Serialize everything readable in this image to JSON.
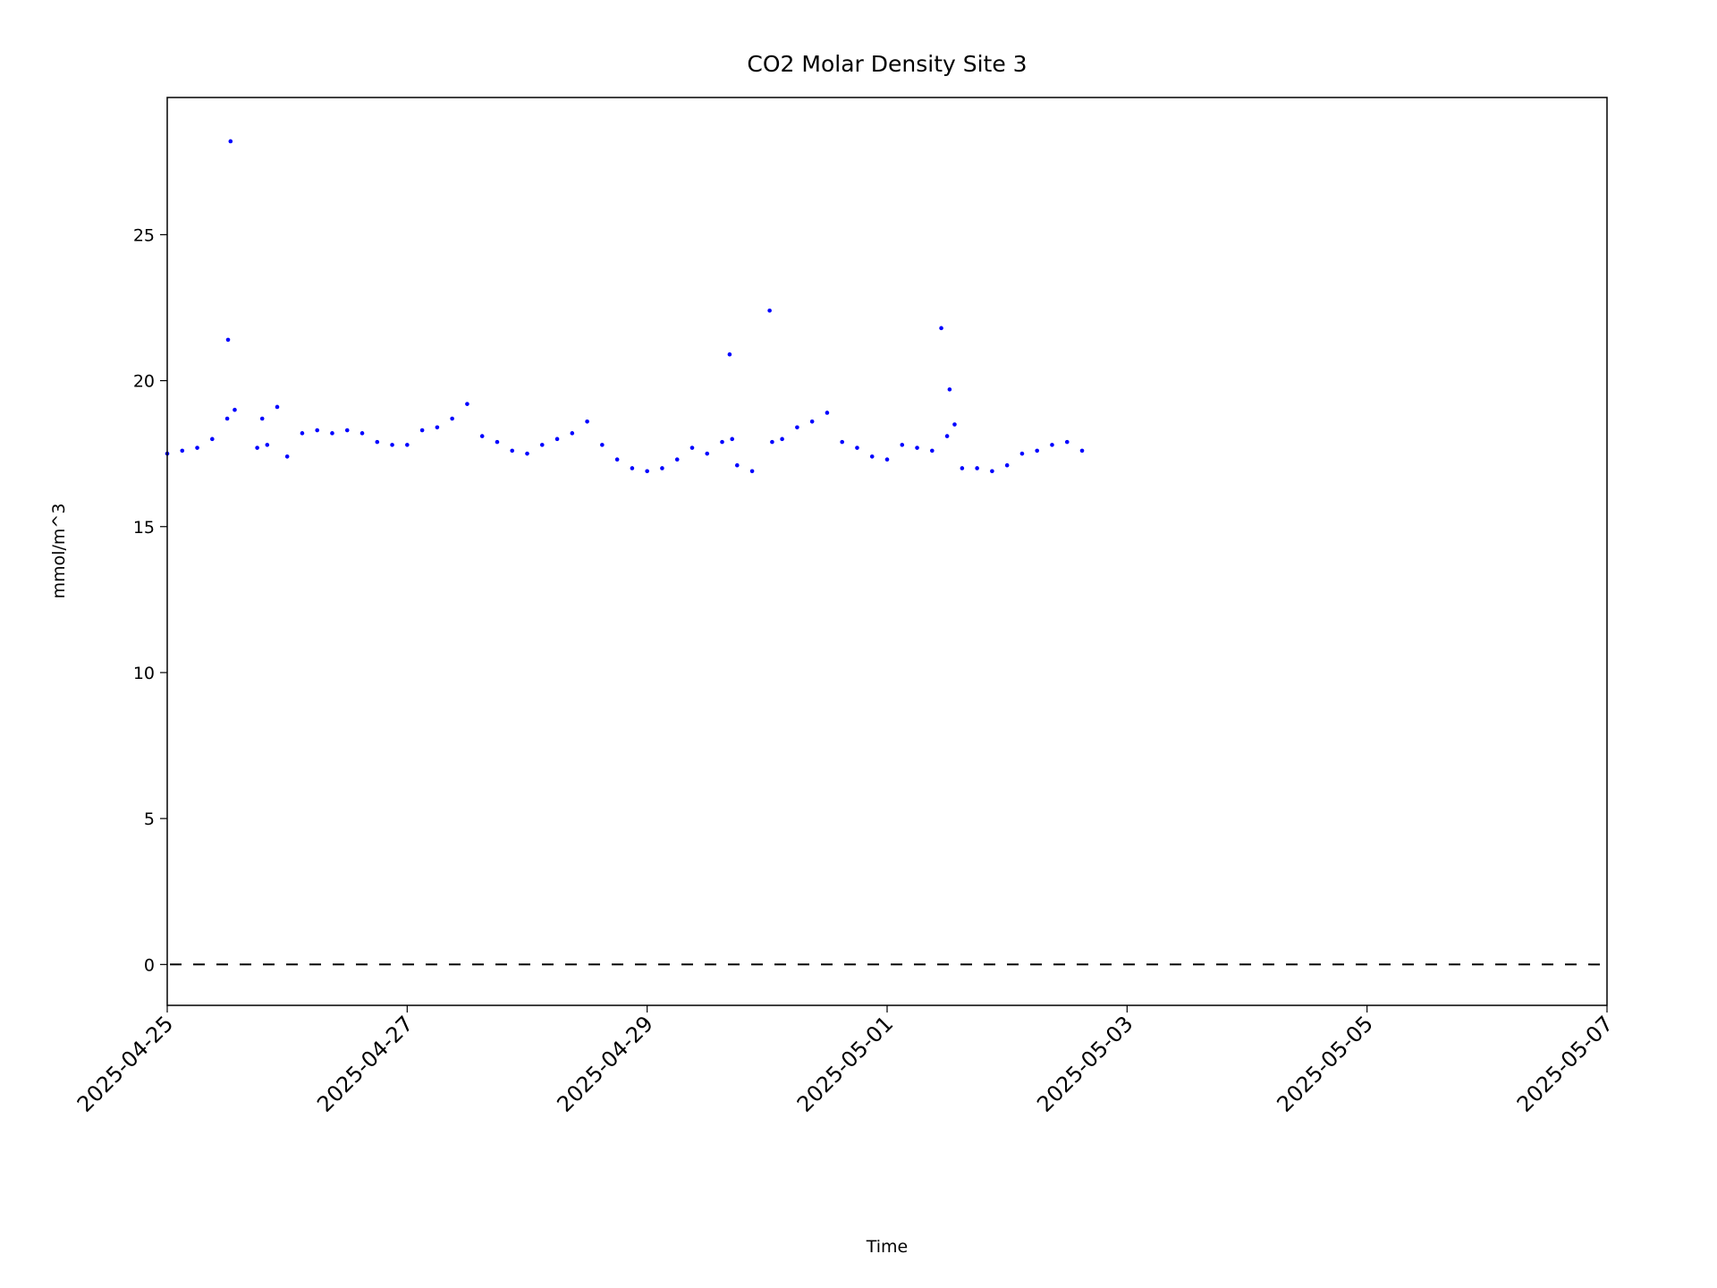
{
  "chart_data": {
    "type": "scatter",
    "title": "CO2 Molar Density Site 3",
    "x_label": "Time",
    "y_label": "mmol/m^3",
    "x": [
      "2025-04-25T00:00",
      "2025-04-25T03:00",
      "2025-04-25T06:00",
      "2025-04-25T09:00",
      "2025-04-25T12:00",
      "2025-04-25T12:10",
      "2025-04-25T12:40",
      "2025-04-25T13:30",
      "2025-04-25T18:00",
      "2025-04-25T19:00",
      "2025-04-25T20:00",
      "2025-04-25T22:00",
      "2025-04-26T00:00",
      "2025-04-26T03:00",
      "2025-04-26T06:00",
      "2025-04-26T09:00",
      "2025-04-26T12:00",
      "2025-04-26T15:00",
      "2025-04-26T18:00",
      "2025-04-26T21:00",
      "2025-04-27T00:00",
      "2025-04-27T03:00",
      "2025-04-27T06:00",
      "2025-04-27T09:00",
      "2025-04-27T12:00",
      "2025-04-27T15:00",
      "2025-04-27T18:00",
      "2025-04-27T21:00",
      "2025-04-28T00:00",
      "2025-04-28T03:00",
      "2025-04-28T06:00",
      "2025-04-28T09:00",
      "2025-04-28T12:00",
      "2025-04-28T15:00",
      "2025-04-28T18:00",
      "2025-04-28T21:00",
      "2025-04-29T00:00",
      "2025-04-29T03:00",
      "2025-04-29T06:00",
      "2025-04-29T09:00",
      "2025-04-29T12:00",
      "2025-04-29T15:00",
      "2025-04-29T16:30",
      "2025-04-29T17:00",
      "2025-04-29T18:00",
      "2025-04-29T21:00",
      "2025-04-30T00:30",
      "2025-04-30T01:00",
      "2025-04-30T03:00",
      "2025-04-30T06:00",
      "2025-04-30T09:00",
      "2025-04-30T12:00",
      "2025-04-30T15:00",
      "2025-04-30T18:00",
      "2025-04-30T21:00",
      "2025-05-01T00:00",
      "2025-05-01T03:00",
      "2025-05-01T06:00",
      "2025-05-01T09:00",
      "2025-05-01T10:50",
      "2025-05-01T12:00",
      "2025-05-01T12:30",
      "2025-05-01T13:30",
      "2025-05-01T15:00",
      "2025-05-01T18:00",
      "2025-05-01T21:00",
      "2025-05-02T00:00",
      "2025-05-02T03:00",
      "2025-05-02T06:00",
      "2025-05-02T09:00",
      "2025-05-02T12:00",
      "2025-05-02T15:00"
    ],
    "values": [
      17.5,
      17.6,
      17.7,
      18.0,
      18.7,
      21.4,
      28.2,
      19.0,
      17.7,
      18.7,
      17.8,
      19.1,
      17.4,
      18.2,
      18.3,
      18.2,
      18.3,
      18.2,
      17.9,
      17.8,
      17.8,
      18.3,
      18.4,
      18.7,
      19.2,
      18.1,
      17.9,
      17.6,
      17.5,
      17.8,
      18.0,
      18.2,
      18.6,
      17.8,
      17.3,
      17.0,
      16.9,
      17.0,
      17.3,
      17.7,
      17.5,
      17.9,
      20.9,
      18.0,
      17.1,
      16.9,
      22.4,
      17.9,
      18.0,
      18.4,
      18.6,
      18.9,
      17.9,
      17.7,
      17.4,
      17.3,
      17.8,
      17.7,
      17.6,
      21.8,
      18.1,
      19.7,
      18.5,
      17.0,
      17.0,
      16.9,
      17.1,
      17.5,
      17.6,
      17.8,
      17.9,
      17.6
    ],
    "color": "#0000ff",
    "xlim": [
      "2025-04-25",
      "2025-05-07"
    ],
    "xticks": [
      "2025-04-25",
      "2025-04-27",
      "2025-04-29",
      "2025-05-01",
      "2025-05-03",
      "2025-05-05",
      "2025-05-07"
    ],
    "ylim": [
      -1.4,
      29.7
    ],
    "yticks": [
      0,
      5,
      10,
      15,
      20,
      25
    ],
    "reference_line": {
      "y": 0,
      "style": "dashed",
      "color": "#000000"
    }
  }
}
